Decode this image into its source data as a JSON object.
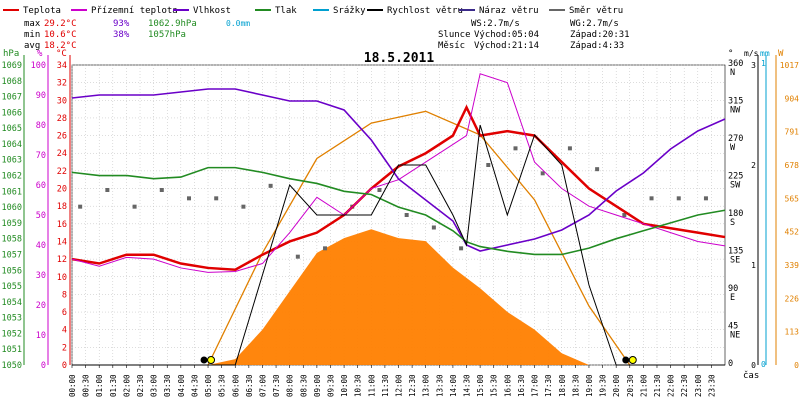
{
  "legend": [
    {
      "label": "Teplota",
      "color": "#e00000"
    },
    {
      "label": "Přízemní teplota",
      "color": "#cc00cc"
    },
    {
      "label": "Vlhkost",
      "color": "#6a00c8"
    },
    {
      "label": "Tlak",
      "color": "#228b22"
    },
    {
      "label": "Srážky",
      "color": "#00a0d0"
    },
    {
      "label": "Rychlost větru",
      "color": "#000000"
    },
    {
      "label": "Náraz větru",
      "color": "#3b2a8a"
    },
    {
      "label": "Směr větru",
      "color": "#666666"
    }
  ],
  "stats": {
    "max": {
      "label": "max",
      "temp": "29.2°C",
      "hum": "93%",
      "press": "1062.9hPa",
      "rain": "0.0mm"
    },
    "min": {
      "label": "min",
      "temp": "10.6°C",
      "hum": "38%",
      "press": "1057hPa"
    },
    "avg": {
      "label": "avg",
      "temp": "18.2°C"
    }
  },
  "wind_info": {
    "ws": "WS:2.7m/s",
    "wg": "WG:2.7m/s"
  },
  "sun": {
    "label": "Slunce",
    "rise": "Východ:05:04",
    "set": "Západ:20:31"
  },
  "moon": {
    "label": "Měsíc",
    "rise": "Východ:21:14",
    "set": "Západ:4:33"
  },
  "title": "18.5.2011",
  "xlabel": "čas",
  "axes": {
    "hpa": {
      "unit": "hPa",
      "ticks": [
        "1069",
        "1068",
        "1067",
        "1066",
        "1065",
        "1064",
        "1063",
        "1062",
        "1061",
        "1060",
        "1059",
        "1058",
        "1057",
        "1056",
        "1055",
        "1054",
        "1053",
        "1052",
        "1051",
        "1050"
      ]
    },
    "pct": {
      "unit": "%",
      "ticks": [
        "100",
        "90",
        "80",
        "70",
        "60",
        "50",
        "40",
        "30",
        "20",
        "10",
        "0"
      ]
    },
    "degc": {
      "unit": "°C",
      "ticks": [
        "34",
        "32",
        "30",
        "28",
        "26",
        "24",
        "22",
        "20",
        "18",
        "16",
        "14",
        "12",
        "10",
        "8",
        "6",
        "4",
        "2",
        "0"
      ]
    },
    "dir": {
      "unit": "°",
      "ticks": [
        "360",
        "315",
        "270",
        "225",
        "180",
        "135",
        "90",
        "45",
        "0"
      ],
      "labels": [
        "N",
        "NW",
        "W",
        "SW",
        "S",
        "SE",
        "E",
        "NE",
        ""
      ]
    },
    "ms": {
      "unit": "m/s",
      "ticks": [
        "3",
        "2",
        "1",
        "0"
      ]
    },
    "mm": {
      "unit": "mm",
      "ticks": [
        "1",
        "0"
      ]
    },
    "wm": {
      "unit": "W",
      "ticks": [
        "1017",
        "904",
        "791",
        "678",
        "565",
        "452",
        "339",
        "226",
        "113",
        "0"
      ]
    }
  },
  "times": [
    "00:00",
    "00:30",
    "01:00",
    "01:30",
    "02:00",
    "02:30",
    "03:00",
    "03:30",
    "04:00",
    "04:30",
    "05:00",
    "05:30",
    "06:00",
    "06:30",
    "07:00",
    "07:30",
    "08:00",
    "08:30",
    "09:00",
    "09:30",
    "10:00",
    "10:30",
    "11:00",
    "11:30",
    "12:00",
    "12:30",
    "13:00",
    "13:30",
    "14:00",
    "14:30",
    "15:00",
    "15:30",
    "16:00",
    "16:30",
    "17:00",
    "17:30",
    "18:00",
    "18:30",
    "19:00",
    "19:30",
    "20:00",
    "20:30",
    "21:00",
    "21:30",
    "22:00",
    "22:30",
    "23:00",
    "23:30"
  ],
  "colors": {
    "grid": "#bbbbbb",
    "solar_fill": "#ff8000",
    "theoretical_sun": "#e08000",
    "axis_hpa": "#228b22",
    "axis_pct": "#cc00cc",
    "axis_degc": "#e00000",
    "axis_ms": "#000000",
    "axis_mm": "#00a0d0",
    "axis_wm": "#e08000"
  },
  "chart_data": {
    "type": "line",
    "title": "18.5.2011",
    "xlabel": "čas",
    "x_hours": [
      0,
      1,
      2,
      3,
      4,
      5,
      6,
      7,
      8,
      9,
      10,
      11,
      12,
      13,
      14,
      14.5,
      15,
      16,
      17,
      18,
      19,
      20,
      21,
      22,
      23,
      24
    ],
    "series": [
      {
        "name": "Teplota",
        "unit": "°C",
        "color": "#e00000",
        "values": [
          12,
          11.5,
          12.5,
          12.5,
          11.5,
          11,
          10.8,
          12.5,
          14,
          15,
          17,
          20,
          22.5,
          24,
          26,
          29.2,
          26,
          26.5,
          26,
          23,
          20,
          18,
          16,
          15.5,
          15,
          14.5
        ]
      },
      {
        "name": "Přízemní teplota",
        "unit": "°C",
        "color": "#cc00cc",
        "values": [
          12,
          11.2,
          12.2,
          12,
          11,
          10.5,
          10.6,
          11.5,
          15,
          19,
          17,
          20,
          21,
          23,
          25,
          26,
          33,
          32,
          23,
          20,
          18,
          17,
          16,
          15,
          14,
          13.5
        ]
      },
      {
        "name": "Vlhkost",
        "unit": "%",
        "color": "#6a00c8",
        "values": [
          89,
          90,
          90,
          90,
          91,
          92,
          92,
          90,
          88,
          88,
          85,
          75,
          62,
          55,
          48,
          40,
          38,
          40,
          42,
          45,
          50,
          58,
          64,
          72,
          78,
          82
        ]
      },
      {
        "name": "Tlak",
        "unit": "hPa",
        "color": "#228b22",
        "values": [
          1062.2,
          1062,
          1062,
          1061.8,
          1061.9,
          1062.5,
          1062.5,
          1062.2,
          1061.8,
          1061.5,
          1061,
          1060.8,
          1060,
          1059.5,
          1058.5,
          1057.8,
          1057.5,
          1057.2,
          1057,
          1057,
          1057.4,
          1058,
          1058.5,
          1059,
          1059.5,
          1059.8
        ]
      },
      {
        "name": "Rychlost větru",
        "unit": "m/s",
        "values": [
          0,
          0,
          0,
          0,
          0,
          0,
          0,
          0.9,
          1.8,
          1.5,
          1.5,
          1.5,
          2,
          2,
          1.5,
          1.2,
          2.4,
          1.5,
          2.3,
          2,
          0.8,
          0,
          0,
          0,
          0,
          0
        ]
      }
    ],
    "solar_radiation": {
      "name": "Sluneční záření",
      "unit": "W/m²",
      "x_hours": [
        5,
        6,
        7,
        8,
        9,
        10,
        11,
        12,
        13,
        14,
        15,
        16,
        17,
        18,
        19
      ],
      "values": [
        0,
        20,
        120,
        250,
        380,
        430,
        460,
        430,
        420,
        330,
        260,
        180,
        120,
        40,
        0
      ]
    },
    "theoretical_sun": {
      "unit": "W/m²",
      "x_hours": [
        5,
        7,
        9,
        11,
        13,
        15,
        17,
        19,
        20.5
      ],
      "values": [
        0,
        380,
        700,
        820,
        860,
        780,
        560,
        200,
        0
      ]
    },
    "wind_direction": {
      "unit": "°",
      "x_hours": [
        0,
        1,
        2,
        3,
        4,
        5,
        6,
        7,
        8,
        9,
        10,
        11,
        12,
        13,
        14,
        15,
        16,
        17,
        18,
        19,
        20,
        21,
        22,
        23
      ],
      "values": [
        190,
        210,
        190,
        210,
        200,
        200,
        190,
        215,
        130,
        140,
        190,
        210,
        180,
        165,
        140,
        240,
        260,
        230,
        260,
        235,
        180,
        200,
        200,
        200
      ]
    }
  }
}
